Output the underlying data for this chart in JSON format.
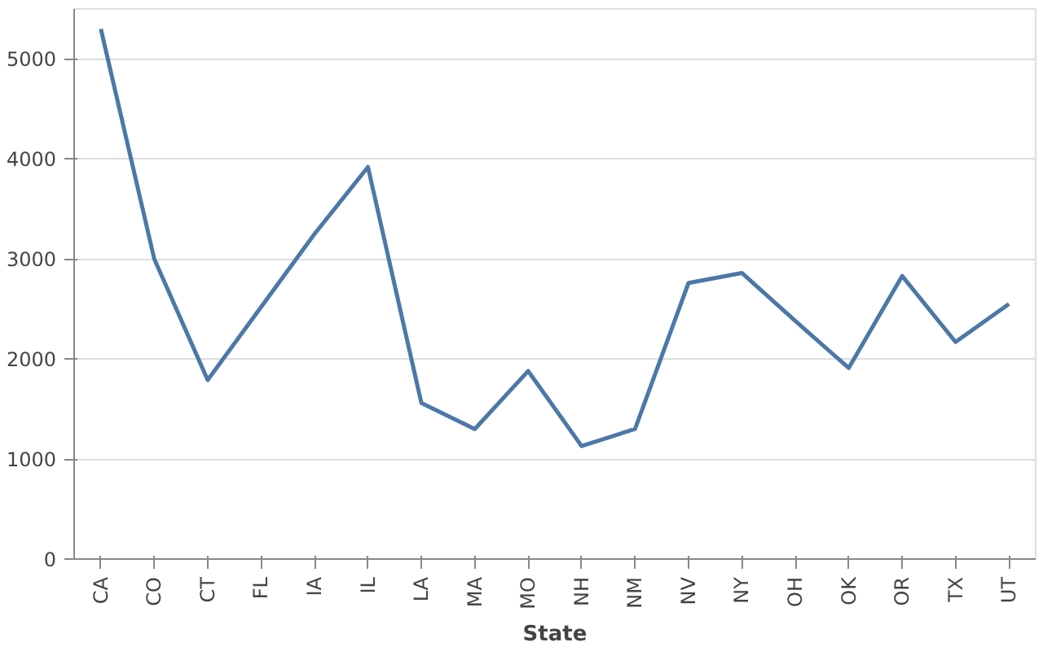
{
  "chart_data": {
    "type": "line",
    "xlabel": "State",
    "categories": [
      "CA",
      "CO",
      "CT",
      "FL",
      "IA",
      "IL",
      "LA",
      "MA",
      "MO",
      "NH",
      "NM",
      "NV",
      "NY",
      "OH",
      "OK",
      "OR",
      "TX",
      "UT"
    ],
    "series": [
      {
        "color": "#4c78a8",
        "values": [
          5300,
          3000,
          1790,
          2520,
          3250,
          3920,
          1560,
          1300,
          1880,
          1130,
          1300,
          2760,
          2860,
          2380,
          1910,
          2830,
          2170,
          2550
        ]
      }
    ],
    "ylim": [
      0,
      5500
    ],
    "yticks": [
      0,
      1000,
      2000,
      3000,
      4000,
      5000
    ],
    "grid": "y",
    "marker": "none",
    "line_style": "solid"
  }
}
